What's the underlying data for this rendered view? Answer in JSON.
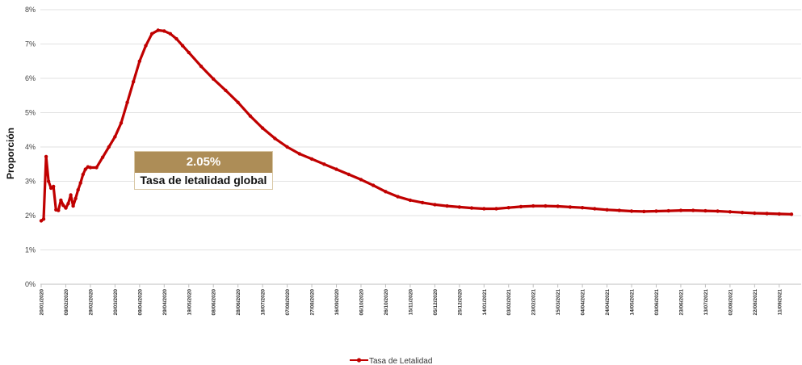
{
  "chart_data": {
    "type": "line",
    "ylabel": "Proporción",
    "xlabel": "",
    "ylim": [
      0,
      8
    ],
    "y_ticks": [
      "0%",
      "1%",
      "2%",
      "3%",
      "4%",
      "5%",
      "6%",
      "7%",
      "8%"
    ],
    "x_tick_labels": [
      "20/01/2020",
      "09/02/2020",
      "29/02/2020",
      "20/03/2020",
      "09/04/2020",
      "29/04/2020",
      "19/05/2020",
      "08/06/2020",
      "28/06/2020",
      "18/07/2020",
      "07/08/2020",
      "27/08/2020",
      "16/09/2020",
      "06/10/2020",
      "26/10/2020",
      "15/11/2020",
      "05/12/2020",
      "25/12/2020",
      "14/01/2021",
      "03/02/2021",
      "23/02/2021",
      "15/03/2021",
      "04/04/2021",
      "24/04/2021",
      "14/05/2021",
      "03/06/2021",
      "23/06/2021",
      "13/07/2021",
      "02/08/2021",
      "22/08/2021",
      "11/09/2021"
    ],
    "grid": true,
    "legend_position": "bottom",
    "series": [
      {
        "name": "Tasa de Letalidad",
        "color": "#c00000",
        "x": [
          "20/01/2020",
          "22/01/2020",
          "24/01/2020",
          "26/01/2020",
          "28/01/2020",
          "30/01/2020",
          "01/02/2020",
          "03/02/2020",
          "05/02/2020",
          "07/02/2020",
          "09/02/2020",
          "11/02/2020",
          "13/02/2020",
          "15/02/2020",
          "17/02/2020",
          "19/02/2020",
          "21/02/2020",
          "23/02/2020",
          "25/02/2020",
          "27/02/2020",
          "29/02/2020",
          "05/03/2020",
          "10/03/2020",
          "15/03/2020",
          "20/03/2020",
          "25/03/2020",
          "30/03/2020",
          "04/04/2020",
          "09/04/2020",
          "14/04/2020",
          "19/04/2020",
          "24/04/2020",
          "29/04/2020",
          "04/05/2020",
          "09/05/2020",
          "14/05/2020",
          "19/05/2020",
          "29/05/2020",
          "08/06/2020",
          "18/06/2020",
          "28/06/2020",
          "08/07/2020",
          "18/07/2020",
          "28/07/2020",
          "07/08/2020",
          "17/08/2020",
          "27/08/2020",
          "06/09/2020",
          "16/09/2020",
          "26/09/2020",
          "06/10/2020",
          "16/10/2020",
          "26/10/2020",
          "05/11/2020",
          "15/11/2020",
          "25/11/2020",
          "05/12/2020",
          "15/12/2020",
          "25/12/2020",
          "04/01/2021",
          "14/01/2021",
          "24/01/2021",
          "03/02/2021",
          "13/02/2021",
          "23/02/2021",
          "05/03/2021",
          "15/03/2021",
          "25/03/2021",
          "04/04/2021",
          "14/04/2021",
          "24/04/2021",
          "04/05/2021",
          "14/05/2021",
          "24/05/2021",
          "03/06/2021",
          "13/06/2021",
          "23/06/2021",
          "03/07/2021",
          "13/07/2021",
          "23/07/2021",
          "02/08/2021",
          "12/08/2021",
          "22/08/2021",
          "01/09/2021",
          "11/09/2021",
          "21/09/2021"
        ],
        "values": [
          1.85,
          1.9,
          3.72,
          3.0,
          2.8,
          2.85,
          2.17,
          2.15,
          2.45,
          2.3,
          2.22,
          2.35,
          2.6,
          2.28,
          2.5,
          2.75,
          2.95,
          3.2,
          3.35,
          3.42,
          3.4,
          3.4,
          3.7,
          4.0,
          4.3,
          4.7,
          5.3,
          5.9,
          6.5,
          6.95,
          7.3,
          7.4,
          7.38,
          7.3,
          7.15,
          6.95,
          6.75,
          6.35,
          5.98,
          5.65,
          5.3,
          4.9,
          4.55,
          4.25,
          4.0,
          3.8,
          3.65,
          3.5,
          3.35,
          3.2,
          3.05,
          2.88,
          2.7,
          2.55,
          2.45,
          2.38,
          2.32,
          2.28,
          2.25,
          2.22,
          2.2,
          2.2,
          2.23,
          2.26,
          2.28,
          2.28,
          2.27,
          2.25,
          2.23,
          2.2,
          2.17,
          2.15,
          2.13,
          2.12,
          2.13,
          2.14,
          2.15,
          2.15,
          2.14,
          2.13,
          2.11,
          2.09,
          2.07,
          2.06,
          2.05,
          2.04
        ]
      }
    ],
    "annotation": {
      "value": "2.05%",
      "label": "Tasa de letalidad global"
    }
  }
}
